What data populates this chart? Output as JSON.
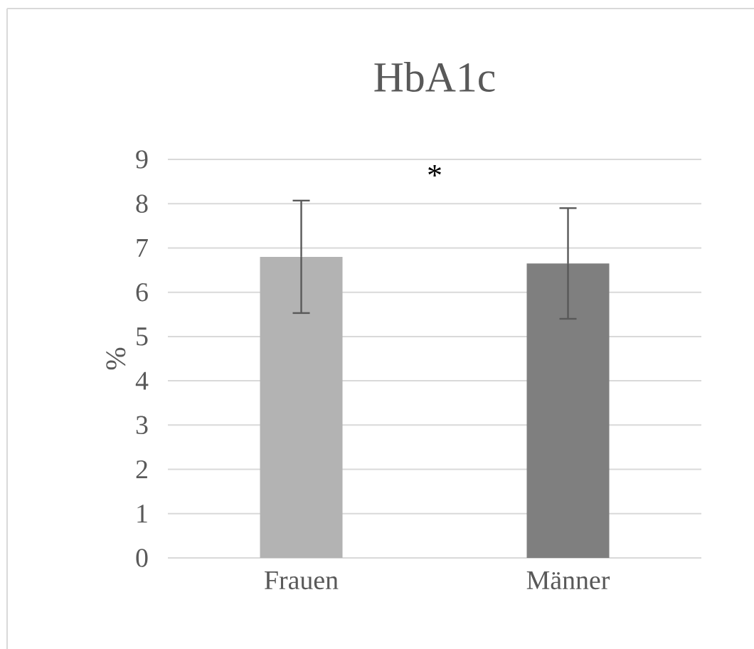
{
  "chart_data": {
    "type": "bar",
    "title": "HbA1c",
    "ylabel": "%",
    "categories": [
      "Frauen",
      "Männer"
    ],
    "values": [
      6.8,
      6.65
    ],
    "colors": [
      "#b3b3b3",
      "#7f7f7f"
    ],
    "errors": [
      1.27,
      1.25
    ],
    "ylim": [
      0,
      9
    ],
    "yticks": [
      0,
      1,
      2,
      3,
      4,
      5,
      6,
      7,
      8,
      9
    ],
    "grid": "y",
    "annotations": [
      "*"
    ]
  }
}
